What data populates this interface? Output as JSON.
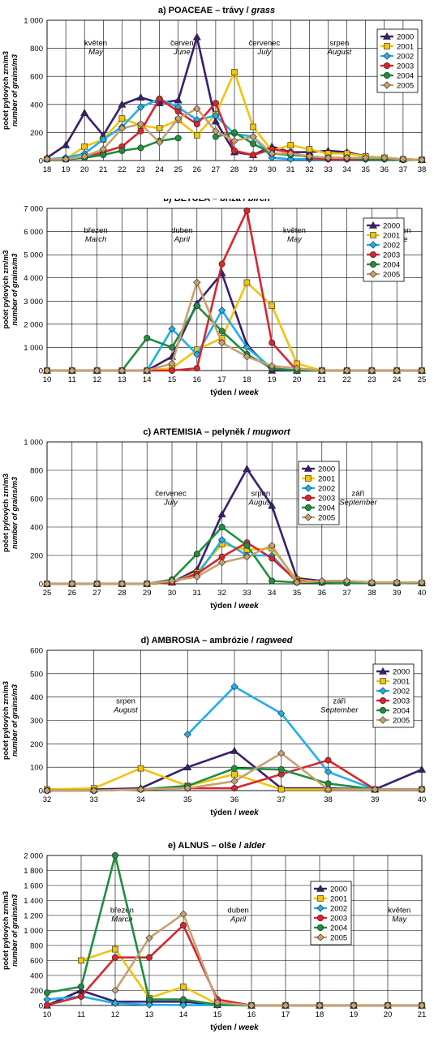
{
  "colors": {
    "2000": "#3b1f6e",
    "2001": "#f2c40a",
    "2002": "#1faeee",
    "2003": "#d8262e",
    "2004": "#1f8f3f",
    "2005": "#c8a070"
  },
  "legend_years": [
    "2000",
    "2001",
    "2002",
    "2003",
    "2004",
    "2005"
  ],
  "chart_data": [
    {
      "type": "line",
      "title": "a) POACEAE – trávy / grass",
      "title_main": "a) POACEAE – trávy / ",
      "title_italic": "grass",
      "ylabel": "počet pylových zrn/m3",
      "ylabel2": "number of grains/m3",
      "xlabel": "",
      "xlabel_main": "",
      "xlabel_italic": "",
      "ylim": [
        0,
        1000
      ],
      "yticks": [
        "0",
        "200",
        "400",
        "600",
        "800",
        "1 000"
      ],
      "x": [
        18,
        19,
        20,
        21,
        22,
        23,
        24,
        25,
        26,
        27,
        28,
        29,
        30,
        31,
        32,
        33,
        34,
        35,
        36,
        37,
        38
      ],
      "grid": true,
      "legend_position": "top-right",
      "months": [
        {
          "cz": "květen",
          "en": "May"
        },
        {
          "cz": "červen",
          "en": "June"
        },
        {
          "cz": "červenec",
          "en": "July"
        },
        {
          "cz": "srpen",
          "en": "August"
        }
      ],
      "series": [
        {
          "name": "2000",
          "values": [
            20,
            110,
            340,
            180,
            400,
            450,
            410,
            430,
            880,
            280,
            60,
            40,
            100,
            60,
            60,
            70,
            60,
            30,
            20,
            10,
            5
          ]
        },
        {
          "name": "2001",
          "values": [
            10,
            10,
            100,
            150,
            300,
            250,
            230,
            290,
            180,
            330,
            630,
            240,
            70,
            110,
            80,
            50,
            50,
            30,
            20,
            10,
            5
          ]
        },
        {
          "name": "2002",
          "values": [
            10,
            20,
            50,
            150,
            240,
            380,
            440,
            380,
            290,
            320,
            190,
            170,
            20,
            10,
            10,
            10,
            10,
            10,
            10,
            5,
            5
          ]
        },
        {
          "name": "2003",
          "values": [
            10,
            10,
            20,
            60,
            100,
            210,
            440,
            350,
            260,
            410,
            70,
            40,
            80,
            60,
            20,
            10,
            10,
            10,
            10,
            5,
            5
          ]
        },
        {
          "name": "2004",
          "values": [
            10,
            10,
            20,
            40,
            70,
            90,
            140,
            160,
            null,
            170,
            200,
            120,
            50,
            40,
            30,
            20,
            20,
            10,
            10,
            5,
            5
          ]
        },
        {
          "name": "2005",
          "values": [
            10,
            10,
            30,
            80,
            230,
            260,
            130,
            300,
            370,
            210,
            140,
            170,
            50,
            50,
            30,
            20,
            20,
            20,
            20,
            10,
            5
          ]
        }
      ]
    },
    {
      "type": "line",
      "title": "b) BETULA – bříza / birch",
      "title_main": "b) BETULA – bříza / ",
      "title_italic": "birch",
      "ylabel": "počet pylových zrn/m3",
      "ylabel2": "number of grains/m3",
      "xlabel": "týden / week",
      "xlabel_main": "týden / ",
      "xlabel_italic": "week",
      "ylim": [
        0,
        7000
      ],
      "yticks": [
        "0",
        "1 000",
        "2 000",
        "3 000",
        "4 000",
        "5 000",
        "6 000",
        "7 000"
      ],
      "x": [
        10,
        11,
        12,
        13,
        14,
        15,
        16,
        17,
        18,
        19,
        20,
        21,
        22,
        23,
        24,
        25
      ],
      "grid": true,
      "legend_position": "top-right",
      "months": [
        {
          "cz": "březen",
          "en": "March"
        },
        {
          "cz": "duben",
          "en": "April"
        },
        {
          "cz": "květen",
          "en": "May"
        },
        {
          "cz": "červen",
          "en": "June"
        }
      ],
      "series": [
        {
          "name": "2000",
          "values": [
            0,
            0,
            0,
            0,
            0,
            600,
            2900,
            4200,
            1100,
            0,
            0,
            0,
            0,
            0,
            0,
            0
          ]
        },
        {
          "name": "2001",
          "values": [
            0,
            0,
            0,
            0,
            0,
            100,
            900,
            1400,
            3800,
            2800,
            300,
            0,
            0,
            0,
            0,
            0
          ]
        },
        {
          "name": "2002",
          "values": [
            0,
            0,
            0,
            0,
            0,
            1800,
            700,
            2600,
            1000,
            100,
            0,
            0,
            0,
            0,
            0,
            0
          ]
        },
        {
          "name": "2003",
          "values": [
            0,
            0,
            0,
            0,
            0,
            0,
            100,
            4600,
            6900,
            1200,
            0,
            0,
            0,
            0,
            0,
            0
          ]
        },
        {
          "name": "2004",
          "values": [
            0,
            0,
            0,
            0,
            1400,
            1000,
            2800,
            1700,
            700,
            100,
            0,
            0,
            0,
            0,
            0,
            0
          ]
        },
        {
          "name": "2005",
          "values": [
            0,
            0,
            0,
            0,
            0,
            300,
            3800,
            1200,
            600,
            200,
            100,
            0,
            0,
            0,
            0,
            0
          ]
        }
      ]
    },
    {
      "type": "line",
      "title": "c) ARTEMISIA – pelyněk / mugwort",
      "title_main": "c) ARTEMISIA – pelyněk / ",
      "title_italic": "mugwort",
      "ylabel": "počet pylových zrn/m3",
      "ylabel2": "number of grains/m3",
      "xlabel": "týden / week",
      "xlabel_main": "týden / ",
      "xlabel_italic": "week",
      "ylim": [
        0,
        1000
      ],
      "yticks": [
        "0",
        "200",
        "400",
        "600",
        "800",
        "1 000"
      ],
      "x": [
        25,
        26,
        27,
        28,
        29,
        30,
        31,
        32,
        33,
        34,
        35,
        36,
        37,
        38,
        39,
        40
      ],
      "grid": true,
      "legend_position": "top-right",
      "months": [
        {
          "cz": "červenec",
          "en": "July"
        },
        {
          "cz": "srpen",
          "en": "August"
        },
        {
          "cz": "září",
          "en": "September"
        }
      ],
      "series": [
        {
          "name": "2000",
          "values": [
            0,
            0,
            0,
            0,
            0,
            10,
            100,
            490,
            810,
            550,
            40,
            20,
            20,
            10,
            10,
            5
          ]
        },
        {
          "name": "2001",
          "values": [
            0,
            0,
            0,
            0,
            0,
            10,
            80,
            280,
            240,
            250,
            30,
            10,
            10,
            5,
            5,
            5
          ]
        },
        {
          "name": "2002",
          "values": [
            0,
            0,
            0,
            0,
            0,
            20,
            60,
            310,
            200,
            200,
            10,
            10,
            10,
            5,
            5,
            5
          ]
        },
        {
          "name": "2003",
          "values": [
            0,
            0,
            0,
            0,
            0,
            10,
            70,
            190,
            290,
            180,
            20,
            10,
            10,
            5,
            5,
            5
          ]
        },
        {
          "name": "2004",
          "values": [
            0,
            0,
            0,
            0,
            0,
            30,
            210,
            400,
            270,
            20,
            10,
            10,
            5,
            5,
            5,
            5
          ]
        },
        {
          "name": "2005",
          "values": [
            0,
            0,
            0,
            0,
            0,
            20,
            50,
            150,
            190,
            270,
            10,
            20,
            20,
            10,
            10,
            10
          ]
        }
      ]
    },
    {
      "type": "line",
      "title": "d) AMBROSIA – ambrózie / ragweed",
      "title_main": "d) AMBROSIA – ambrózie / ",
      "title_italic": "ragweed",
      "ylabel": "počet pylových zrn/m3",
      "ylabel2": "number of grains/m3",
      "xlabel": "týden / week",
      "xlabel_main": "týden / ",
      "xlabel_italic": "week",
      "ylim": [
        0,
        600
      ],
      "yticks": [
        "0",
        "100",
        "200",
        "300",
        "400",
        "500",
        "600"
      ],
      "x": [
        32,
        33,
        34,
        35,
        36,
        37,
        38,
        39,
        40
      ],
      "grid": true,
      "legend_position": "top-right",
      "months": [
        {
          "cz": "srpen",
          "en": "August"
        },
        {
          "cz": "září",
          "en": "September"
        }
      ],
      "series": [
        {
          "name": "2000",
          "values": [
            5,
            5,
            10,
            100,
            170,
            10,
            10,
            5,
            90
          ]
        },
        {
          "name": "2001",
          "values": [
            5,
            10,
            95,
            20,
            70,
            5,
            5,
            5,
            5
          ]
        },
        {
          "name": "2002",
          "values": [
            null,
            null,
            null,
            240,
            445,
            330,
            80,
            5,
            5
          ]
        },
        {
          "name": "2003",
          "values": [
            0,
            0,
            5,
            10,
            10,
            70,
            130,
            5,
            5
          ]
        },
        {
          "name": "2004",
          "values": [
            0,
            0,
            5,
            20,
            95,
            90,
            30,
            5,
            5
          ]
        },
        {
          "name": "2005",
          "values": [
            0,
            0,
            5,
            10,
            40,
            160,
            5,
            5,
            5
          ]
        }
      ]
    },
    {
      "type": "line",
      "title": "e) ALNUS – olše / alder",
      "title_main": "e) ALNUS – olše / ",
      "title_italic": "alder",
      "ylabel": "počet pylových zrn/m3",
      "ylabel2": "number of grains/m3",
      "xlabel": "týden / week",
      "xlabel_main": "týden / ",
      "xlabel_italic": "week",
      "ylim": [
        0,
        2000
      ],
      "yticks": [
        "0",
        "200",
        "400",
        "600",
        "800",
        "1 000",
        "1 200",
        "1 400",
        "1 600",
        "1 800",
        "2 000"
      ],
      "x": [
        10,
        11,
        12,
        13,
        14,
        15,
        16,
        17,
        18,
        19,
        20,
        21
      ],
      "grid": true,
      "legend_position": "top-right",
      "months": [
        {
          "cz": "březen",
          "en": "March"
        },
        {
          "cz": "duben",
          "en": "April"
        },
        {
          "cz": "květen",
          "en": "May"
        }
      ],
      "series": [
        {
          "name": "2000",
          "values": [
            0,
            200,
            50,
            50,
            50,
            10,
            0,
            0,
            0,
            0,
            0,
            0
          ]
        },
        {
          "name": "2001",
          "values": [
            null,
            600,
            750,
            100,
            250,
            20,
            0,
            0,
            0,
            0,
            0,
            0
          ]
        },
        {
          "name": "2002",
          "values": [
            80,
            120,
            30,
            10,
            5,
            5,
            0,
            0,
            0,
            0,
            0,
            0
          ]
        },
        {
          "name": "2003",
          "values": [
            5,
            120,
            640,
            640,
            1070,
            80,
            0,
            0,
            0,
            0,
            0,
            0
          ]
        },
        {
          "name": "2004",
          "values": [
            170,
            250,
            2000,
            80,
            80,
            10,
            0,
            0,
            0,
            0,
            0,
            0
          ]
        },
        {
          "name": "2005",
          "values": [
            null,
            null,
            200,
            900,
            1220,
            40,
            0,
            0,
            0,
            0,
            0,
            0
          ]
        }
      ]
    }
  ]
}
